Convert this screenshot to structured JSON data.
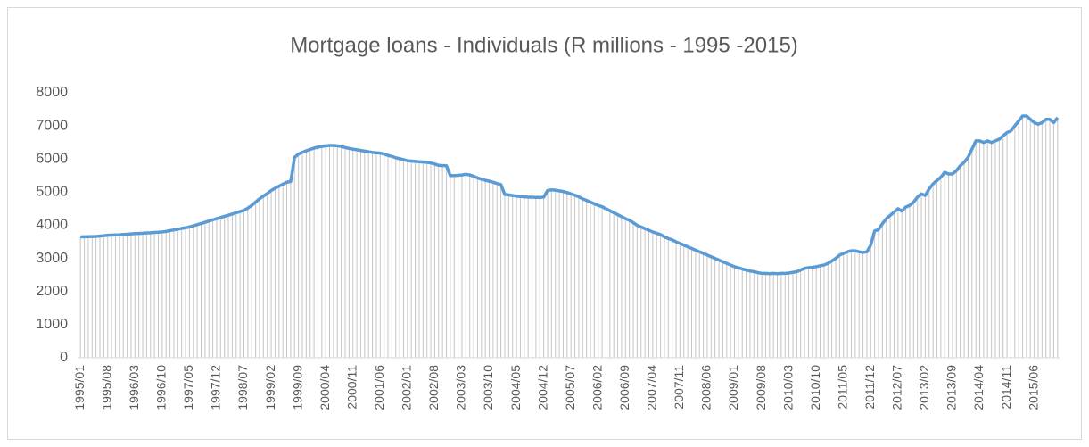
{
  "chart_data": {
    "type": "line",
    "title": "Mortgage loans - Individuals (R millions - 1995 -2015)",
    "color": "#5b9bd5",
    "bar_color": "#c6c6c6",
    "grid": false,
    "ylim": [
      0,
      8000
    ],
    "yticks": [
      0,
      1000,
      2000,
      3000,
      4000,
      5000,
      6000,
      7000,
      8000
    ],
    "categories": [
      "1995/01",
      null,
      null,
      null,
      null,
      null,
      null,
      "1995/08",
      null,
      null,
      null,
      null,
      null,
      null,
      "1996/03",
      null,
      null,
      null,
      null,
      null,
      null,
      "1996/10",
      null,
      null,
      null,
      null,
      null,
      null,
      "1997/05",
      null,
      null,
      null,
      null,
      null,
      null,
      "1997/12",
      null,
      null,
      null,
      null,
      null,
      null,
      "1998/07",
      null,
      null,
      null,
      null,
      null,
      null,
      "1999/02",
      null,
      null,
      null,
      null,
      null,
      null,
      "1999/09",
      null,
      null,
      null,
      null,
      null,
      null,
      "2000/04",
      null,
      null,
      null,
      null,
      null,
      null,
      "2000/11",
      null,
      null,
      null,
      null,
      null,
      null,
      "2001/06",
      null,
      null,
      null,
      null,
      null,
      null,
      "2002/01",
      null,
      null,
      null,
      null,
      null,
      null,
      "2002/08",
      null,
      null,
      null,
      null,
      null,
      null,
      "2003/03",
      null,
      null,
      null,
      null,
      null,
      null,
      "2003/10",
      null,
      null,
      null,
      null,
      null,
      null,
      "2004/05",
      null,
      null,
      null,
      null,
      null,
      null,
      "2004/12",
      null,
      null,
      null,
      null,
      null,
      null,
      "2005/07",
      null,
      null,
      null,
      null,
      null,
      null,
      "2006/02",
      null,
      null,
      null,
      null,
      null,
      null,
      "2006/09",
      null,
      null,
      null,
      null,
      null,
      null,
      "2007/04",
      null,
      null,
      null,
      null,
      null,
      null,
      "2007/11",
      null,
      null,
      null,
      null,
      null,
      null,
      "2008/06",
      null,
      null,
      null,
      null,
      null,
      null,
      "2009/01",
      null,
      null,
      null,
      null,
      null,
      null,
      "2009/08",
      null,
      null,
      null,
      null,
      null,
      null,
      "2010/03",
      null,
      null,
      null,
      null,
      null,
      null,
      "2010/10",
      null,
      null,
      null,
      null,
      null,
      null,
      "2011/05",
      null,
      null,
      null,
      null,
      null,
      null,
      "2011/12",
      null,
      null,
      null,
      null,
      null,
      null,
      "2012/07",
      null,
      null,
      null,
      null,
      null,
      null,
      "2013/02",
      null,
      null,
      null,
      null,
      null,
      null,
      "2013/09",
      null,
      null,
      null,
      null,
      null,
      null,
      "2014/04",
      null,
      null,
      null,
      null,
      null,
      null,
      "2014/11",
      null,
      null,
      null,
      null,
      null,
      null,
      "2015/06",
      null,
      null,
      null,
      null,
      null,
      null
    ],
    "values": [
      3650,
      3652,
      3655,
      3660,
      3665,
      3675,
      3685,
      3700,
      3705,
      3710,
      3715,
      3725,
      3730,
      3740,
      3750,
      3755,
      3760,
      3770,
      3775,
      3785,
      3790,
      3800,
      3815,
      3840,
      3860,
      3880,
      3905,
      3925,
      3950,
      3985,
      4020,
      4055,
      4090,
      4130,
      4165,
      4200,
      4235,
      4270,
      4305,
      4340,
      4380,
      4415,
      4450,
      4520,
      4600,
      4700,
      4800,
      4880,
      4960,
      5050,
      5120,
      5180,
      5240,
      5300,
      5320,
      6050,
      6150,
      6200,
      6250,
      6290,
      6330,
      6360,
      6380,
      6400,
      6410,
      6410,
      6400,
      6380,
      6350,
      6320,
      6300,
      6280,
      6260,
      6240,
      6220,
      6200,
      6190,
      6180,
      6150,
      6110,
      6080,
      6040,
      6010,
      5980,
      5950,
      5940,
      5930,
      5920,
      5910,
      5900,
      5880,
      5850,
      5810,
      5800,
      5800,
      5500,
      5500,
      5510,
      5520,
      5540,
      5520,
      5480,
      5430,
      5390,
      5360,
      5330,
      5300,
      5260,
      5230,
      4930,
      4920,
      4900,
      4880,
      4870,
      4860,
      4850,
      4850,
      4840,
      4840,
      4850,
      5050,
      5070,
      5060,
      5040,
      5020,
      4990,
      4950,
      4910,
      4860,
      4800,
      4750,
      4700,
      4650,
      4600,
      4560,
      4500,
      4440,
      4380,
      4320,
      4260,
      4200,
      4150,
      4080,
      4000,
      3950,
      3900,
      3850,
      3800,
      3760,
      3720,
      3650,
      3600,
      3560,
      3500,
      3450,
      3400,
      3350,
      3300,
      3250,
      3200,
      3150,
      3100,
      3050,
      3000,
      2950,
      2900,
      2850,
      2800,
      2750,
      2720,
      2680,
      2650,
      2620,
      2600,
      2570,
      2550,
      2550,
      2540,
      2550,
      2540,
      2550,
      2550,
      2560,
      2580,
      2600,
      2650,
      2700,
      2720,
      2730,
      2750,
      2780,
      2800,
      2850,
      2920,
      3000,
      3100,
      3150,
      3200,
      3230,
      3230,
      3200,
      3180,
      3200,
      3400,
      3830,
      3870,
      4050,
      4200,
      4300,
      4400,
      4500,
      4430,
      4550,
      4600,
      4700,
      4850,
      4950,
      4900,
      5100,
      5250,
      5350,
      5450,
      5600,
      5550,
      5550,
      5650,
      5800,
      5900,
      6050,
      6300,
      6550,
      6550,
      6500,
      6550,
      6500,
      6550,
      6600,
      6700,
      6800,
      6850,
      7000,
      7150,
      7300,
      7300,
      7200,
      7100,
      7050,
      7100,
      7200,
      7200,
      7100,
      7250
    ]
  }
}
